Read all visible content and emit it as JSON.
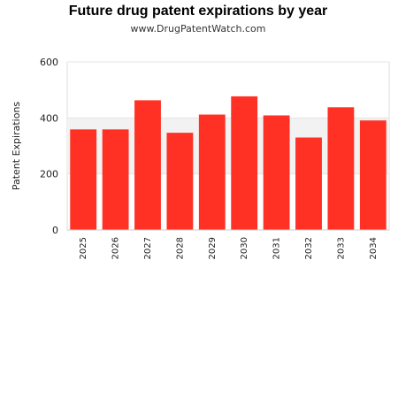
{
  "chart_data": {
    "type": "bar",
    "title": "Future drug patent expirations by year",
    "subtitle": "www.DrugPatentWatch.com",
    "ylabel": "Patent Expirations",
    "xlabel": "",
    "categories": [
      "2025",
      "2026",
      "2027",
      "2028",
      "2029",
      "2030",
      "2031",
      "2032",
      "2033",
      "2034"
    ],
    "values": [
      359,
      359,
      463,
      347,
      412,
      477,
      409,
      330,
      438,
      391
    ],
    "ylim": [
      0,
      600
    ],
    "yticks": [
      0,
      200,
      400,
      600
    ],
    "bar_color": "#ff3124",
    "band_color": "#f2f2f2",
    "grid": true,
    "legend": "none"
  }
}
